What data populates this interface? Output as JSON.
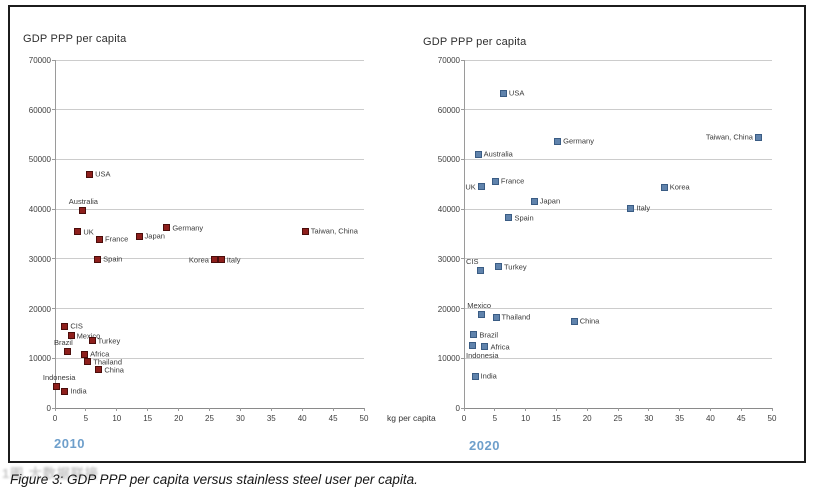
{
  "figure": {
    "caption": "Figure 3: GDP PPP per capita versus stainless steel user per capita.",
    "watermark": "1图 大数据联接"
  },
  "colors": {
    "marker_2010_fill": "#8e1f1c",
    "marker_2010_border": "#4a0d0b",
    "marker_2020_fill": "#6083ac",
    "marker_2020_border": "#3a5c84",
    "year_label": "#6e9fcb",
    "grid": "#cccccc",
    "axis": "#9a9a9a"
  },
  "chart_data": [
    {
      "type": "scatter",
      "title": "GDP PPP per capita",
      "ylabel": "GDP PPP per capita",
      "xlabel": "kg per capita",
      "year_label": "2010",
      "xlim": [
        0,
        50
      ],
      "ylim": [
        0,
        70000
      ],
      "x_ticks": [
        0,
        5,
        10,
        15,
        20,
        25,
        30,
        35,
        40,
        45,
        50
      ],
      "y_ticks": [
        0,
        10000,
        20000,
        30000,
        40000,
        50000,
        60000,
        70000
      ],
      "grid": "horizontal",
      "marker_fill": "#8e1f1c",
      "marker_border": "#4a0d0b",
      "points": [
        {
          "label": "USA",
          "x": 5.6,
          "y": 47000,
          "pos": "right"
        },
        {
          "label": "Australia",
          "x": 4.5,
          "y": 39800,
          "pos": "above"
        },
        {
          "label": "UK",
          "x": 3.7,
          "y": 35500,
          "pos": "right"
        },
        {
          "label": "Germany",
          "x": 18.1,
          "y": 36300,
          "pos": "right"
        },
        {
          "label": "Taiwan, China",
          "x": 40.5,
          "y": 35600,
          "pos": "right"
        },
        {
          "label": "France",
          "x": 7.2,
          "y": 33900,
          "pos": "right"
        },
        {
          "label": "Japan",
          "x": 13.6,
          "y": 34500,
          "pos": "right"
        },
        {
          "label": "Spain",
          "x": 6.9,
          "y": 29900,
          "pos": "right"
        },
        {
          "label": "Korea",
          "x": 25.8,
          "y": 29800,
          "pos": "left"
        },
        {
          "label": "Italy",
          "x": 26.9,
          "y": 29800,
          "pos": "right"
        },
        {
          "label": "CIS",
          "x": 1.6,
          "y": 16400,
          "pos": "right"
        },
        {
          "label": "Mexico",
          "x": 2.6,
          "y": 14500,
          "pos": "right"
        },
        {
          "label": "Turkey",
          "x": 6.0,
          "y": 13500,
          "pos": "right"
        },
        {
          "label": "Brazil",
          "x": 2.1,
          "y": 11300,
          "pos": "above"
        },
        {
          "label": "Africa",
          "x": 4.8,
          "y": 10800,
          "pos": "right"
        },
        {
          "label": "Thailand",
          "x": 5.3,
          "y": 9300,
          "pos": "right"
        },
        {
          "label": "China",
          "x": 7.1,
          "y": 7700,
          "pos": "right"
        },
        {
          "label": "Indonesia",
          "x": 0.3,
          "y": 4300,
          "pos": "above"
        },
        {
          "label": "India",
          "x": 1.6,
          "y": 3400,
          "pos": "right"
        }
      ]
    },
    {
      "type": "scatter",
      "title": "GDP PPP per capita",
      "ylabel": "GDP PPP per capita",
      "xlabel": "kg per capita",
      "year_label": "2020",
      "xlim": [
        0,
        50
      ],
      "ylim": [
        0,
        70000
      ],
      "x_ticks": [
        0,
        5,
        10,
        15,
        20,
        25,
        30,
        35,
        40,
        45,
        50
      ],
      "y_ticks": [
        0,
        10000,
        20000,
        30000,
        40000,
        50000,
        60000,
        70000
      ],
      "grid": "horizontal",
      "marker_fill": "#6083ac",
      "marker_border": "#3a5c84",
      "points": [
        {
          "label": "USA",
          "x": 6.4,
          "y": 63300,
          "pos": "right"
        },
        {
          "label": "Taiwan, China",
          "x": 47.8,
          "y": 54500,
          "pos": "left"
        },
        {
          "label": "Germany",
          "x": 15.2,
          "y": 53700,
          "pos": "right"
        },
        {
          "label": "Australia",
          "x": 2.3,
          "y": 51000,
          "pos": "right"
        },
        {
          "label": "France",
          "x": 5.1,
          "y": 45600,
          "pos": "right"
        },
        {
          "label": "UK",
          "x": 2.8,
          "y": 44500,
          "pos": "left"
        },
        {
          "label": "Korea",
          "x": 32.5,
          "y": 44400,
          "pos": "right"
        },
        {
          "label": "Japan",
          "x": 11.4,
          "y": 41600,
          "pos": "right"
        },
        {
          "label": "Italy",
          "x": 27.1,
          "y": 40200,
          "pos": "right"
        },
        {
          "label": "Spain",
          "x": 7.3,
          "y": 38300,
          "pos": "right"
        },
        {
          "label": "Turkey",
          "x": 5.6,
          "y": 28400,
          "pos": "right"
        },
        {
          "label": "CIS",
          "x": 2.6,
          "y": 27700,
          "pos": "above"
        },
        {
          "label": "Mexico",
          "x": 2.8,
          "y": 18900,
          "pos": "above"
        },
        {
          "label": "Thailand",
          "x": 5.2,
          "y": 18300,
          "pos": "right"
        },
        {
          "label": "China",
          "x": 17.9,
          "y": 17400,
          "pos": "right"
        },
        {
          "label": "Brazil",
          "x": 1.6,
          "y": 14700,
          "pos": "right"
        },
        {
          "label": "Indonesia",
          "x": 1.3,
          "y": 12500,
          "pos": "below"
        },
        {
          "label": "Africa",
          "x": 3.4,
          "y": 12300,
          "pos": "right"
        },
        {
          "label": "India",
          "x": 1.8,
          "y": 6400,
          "pos": "right"
        }
      ]
    }
  ]
}
